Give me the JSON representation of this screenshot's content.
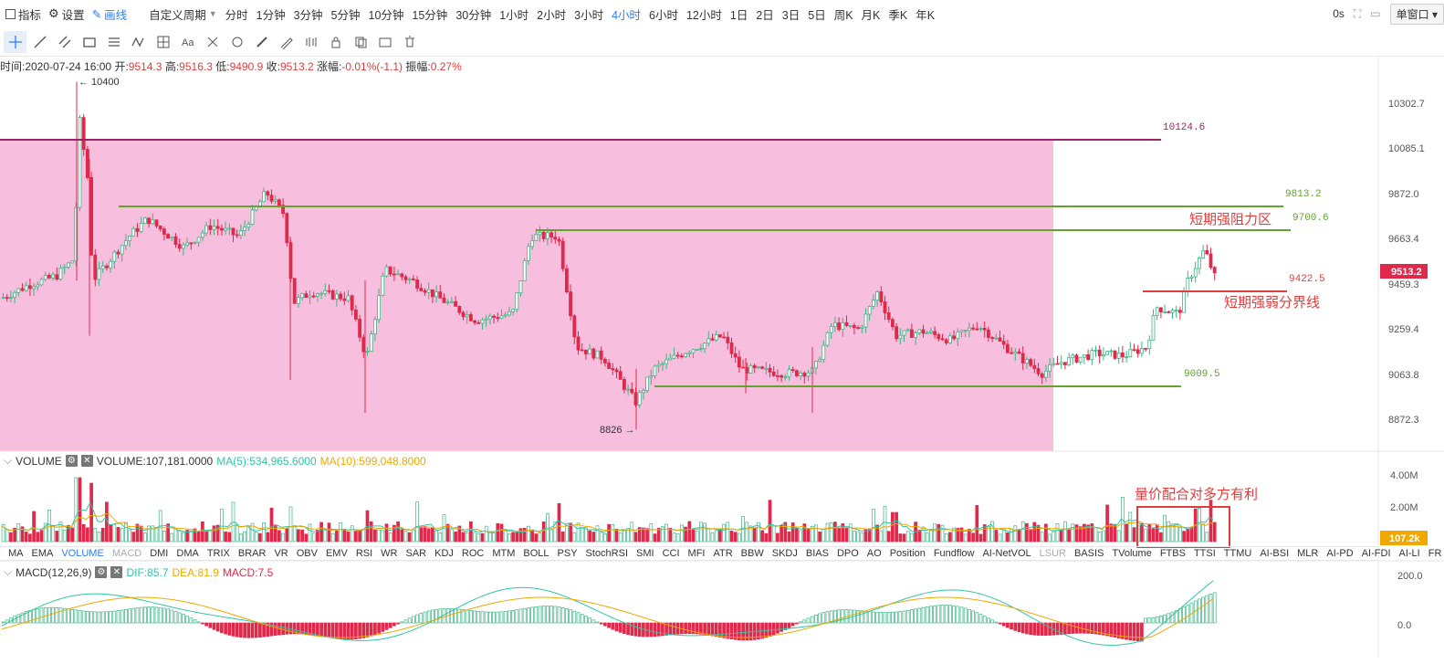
{
  "toolbar": {
    "indicators": "指标",
    "settings": "设置",
    "draw": "画线",
    "custom": "自定义周期",
    "periods": [
      "分时",
      "1分钟",
      "3分钟",
      "5分钟",
      "10分钟",
      "15分钟",
      "30分钟",
      "1小时",
      "2小时",
      "3小时",
      "4小时",
      "6小时",
      "12小时",
      "1日",
      "2日",
      "3日",
      "5日",
      "周K",
      "月K",
      "季K",
      "年K"
    ],
    "active_period": "4小时",
    "timer": "0s",
    "window_mode": "单窗口"
  },
  "info": {
    "time": "时间:2020-07-24 16:00",
    "open_label": "开:",
    "open": "9514.3",
    "high_label": "高:",
    "high": "9516.3",
    "low_label": "低:",
    "low": "9490.9",
    "close_label": "收:",
    "close": "9513.2",
    "change_label": "涨幅:",
    "change": "-0.01%(-1.1)",
    "amp_label": "振幅:",
    "amp": "0.27%"
  },
  "price_axis": [
    "10302.7",
    "10085.1",
    "9872.0",
    "9663.4",
    "9459.3",
    "9259.4",
    "9063.8",
    "8872.3"
  ],
  "current_price": "9513.2",
  "markers": {
    "high": "← 10400",
    "low": "8826 →"
  },
  "levels": [
    "10124.6",
    "9813.2",
    "9700.6",
    "9422.5",
    "9009.5"
  ],
  "annotations": {
    "resistance": "短期强阻力区",
    "divide": "短期强弱分界线",
    "volume_note": "量价配合对多方有利"
  },
  "volume": {
    "title": "VOLUME",
    "value": "VOLUME:107,181.0000",
    "ma5": "MA(5):534,965.6000",
    "ma10": "MA(10):599,048.8000",
    "axis": [
      "4.00M",
      "2.00M"
    ],
    "current": "107.2k"
  },
  "indicator_tabs": [
    "MA",
    "EMA",
    "VOLUME",
    "MACD",
    "DMI",
    "DMA",
    "TRIX",
    "BRAR",
    "VR",
    "OBV",
    "EMV",
    "RSI",
    "WR",
    "SAR",
    "KDJ",
    "ROC",
    "MTM",
    "BOLL",
    "PSY",
    "StochRSI",
    "SMI",
    "CCI",
    "MFI",
    "ATR",
    "BBW",
    "SKDJ",
    "BIAS",
    "DPO",
    "AO",
    "Position",
    "Fundflow",
    "AI-NetVOL",
    "LSUR",
    "BASIS",
    "TVolume",
    "FTBS",
    "TTSI",
    "TTMU",
    "AI-BSI",
    "MLR",
    "AI-PD",
    "AI-FDI",
    "AI-LI",
    "FR"
  ],
  "active_tab": "VOLUME",
  "dim_tabs": [
    "MACD",
    "LSUR"
  ],
  "macd": {
    "title": "MACD(12,26,9)",
    "dif": "DIF:85.7",
    "dea": "DEA:81.9",
    "macd": "MACD:7.5",
    "axis": [
      "200.0",
      "0.0"
    ]
  },
  "colors": {
    "up": "#3db485",
    "down": "#e0294a",
    "zone": "#f8bede",
    "level_green": "#62a32e",
    "level_purple": "#a0216a",
    "level_red": "#e03c3c",
    "accent": "#2f7cf6",
    "vol_ma5": "#2ec6a5",
    "vol_ma10": "#f0a800"
  }
}
